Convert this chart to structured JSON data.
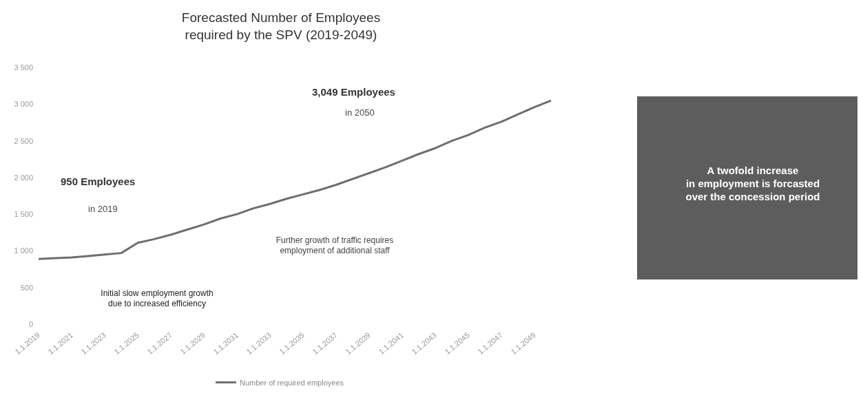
{
  "chart_data": {
    "type": "line",
    "title": "Forecasted Number of Employees\nrequired by the SPV (2019-2049)",
    "categories": [
      "1.1.2019",
      null,
      "1.1.2021",
      null,
      "1.1.2023",
      null,
      "1.1.2025",
      null,
      "1.1.2027",
      null,
      "1.1.2029",
      null,
      "1.1.2031",
      null,
      "1.1.2033",
      null,
      "1.1.2035",
      null,
      "1.1.2037",
      null,
      "1.1.2039",
      null,
      "1.1.2041",
      null,
      "1.1.2043",
      null,
      "1.1.2045",
      null,
      "1.1.2047",
      null,
      "1.1.2049",
      null
    ],
    "series": [
      {
        "name": "Number of required employees",
        "color": "#6e6e6e",
        "values": [
          890,
          900,
          910,
          930,
          950,
          970,
          1110,
          1160,
          1220,
          1290,
          1360,
          1440,
          1500,
          1580,
          1640,
          1710,
          1770,
          1830,
          1900,
          1980,
          2060,
          2140,
          2230,
          2320,
          2400,
          2500,
          2580,
          2680,
          2760,
          2860,
          2960,
          3049
        ]
      }
    ],
    "ylim": [
      0,
      3500
    ],
    "yticks": [
      0,
      500,
      {
        "value": 1000,
        "label": "1 000"
      },
      {
        "value": 1500,
        "label": "1 500"
      },
      {
        "value": 2000,
        "label": "2 000"
      },
      {
        "value": 2500,
        "label": "2 500"
      },
      {
        "value": 3000,
        "label": "3 000"
      },
      {
        "value": 3500,
        "label": "3 500"
      }
    ],
    "grid": false,
    "legend": "bottom",
    "marker": "none",
    "line_style": "solid",
    "annotations": [
      "950 Employees",
      "in 2019",
      "3,049 Employees",
      "in 2050",
      "Initial slow employment growth\ndue to increased efficiency",
      "Further growth of traffic requires\nemployment of additional staff",
      "A twofold increase\nin employment is forcasted\nover the concession period"
    ]
  }
}
